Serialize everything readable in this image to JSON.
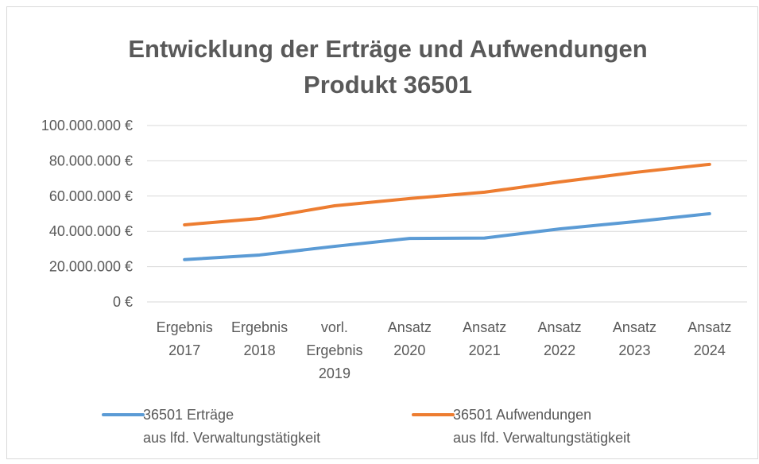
{
  "chart_data": {
    "type": "line",
    "title": [
      "Entwicklung der Erträge und Aufwendungen",
      "Produkt 36501"
    ],
    "categories": [
      "Ergebnis\n2017",
      "Ergebnis\n2018",
      "vorl.\nErgebnis\n2019",
      "Ansatz\n2020",
      "Ansatz\n2021",
      "Ansatz\n2022",
      "Ansatz\n2023",
      "Ansatz\n2024"
    ],
    "series": [
      {
        "name": "36501 Erträge\naus lfd. Verwaltungstätigkeit",
        "color": "#5b9bd5",
        "values": [
          24000000,
          26600000,
          31500000,
          36000000,
          36200000,
          41400000,
          45500000,
          50000000
        ]
      },
      {
        "name": "36501 Aufwendungen\naus lfd. Verwaltungstätigkeit",
        "color": "#ed7d31",
        "values": [
          43700000,
          47300000,
          54500000,
          58600000,
          62200000,
          68000000,
          73400000,
          78000000
        ]
      }
    ],
    "ylim": [
      0,
      100000000
    ],
    "yticks": [
      {
        "value": 0,
        "label": "0 €"
      },
      {
        "value": 20000000,
        "label": "20.000.000 €"
      },
      {
        "value": 40000000,
        "label": "40.000.000 €"
      },
      {
        "value": 60000000,
        "label": "60.000.000 €"
      },
      {
        "value": 80000000,
        "label": "80.000.000 €"
      },
      {
        "value": 100000000,
        "label": "100.000.000 €"
      }
    ],
    "grid": true,
    "legend": "bottom"
  }
}
